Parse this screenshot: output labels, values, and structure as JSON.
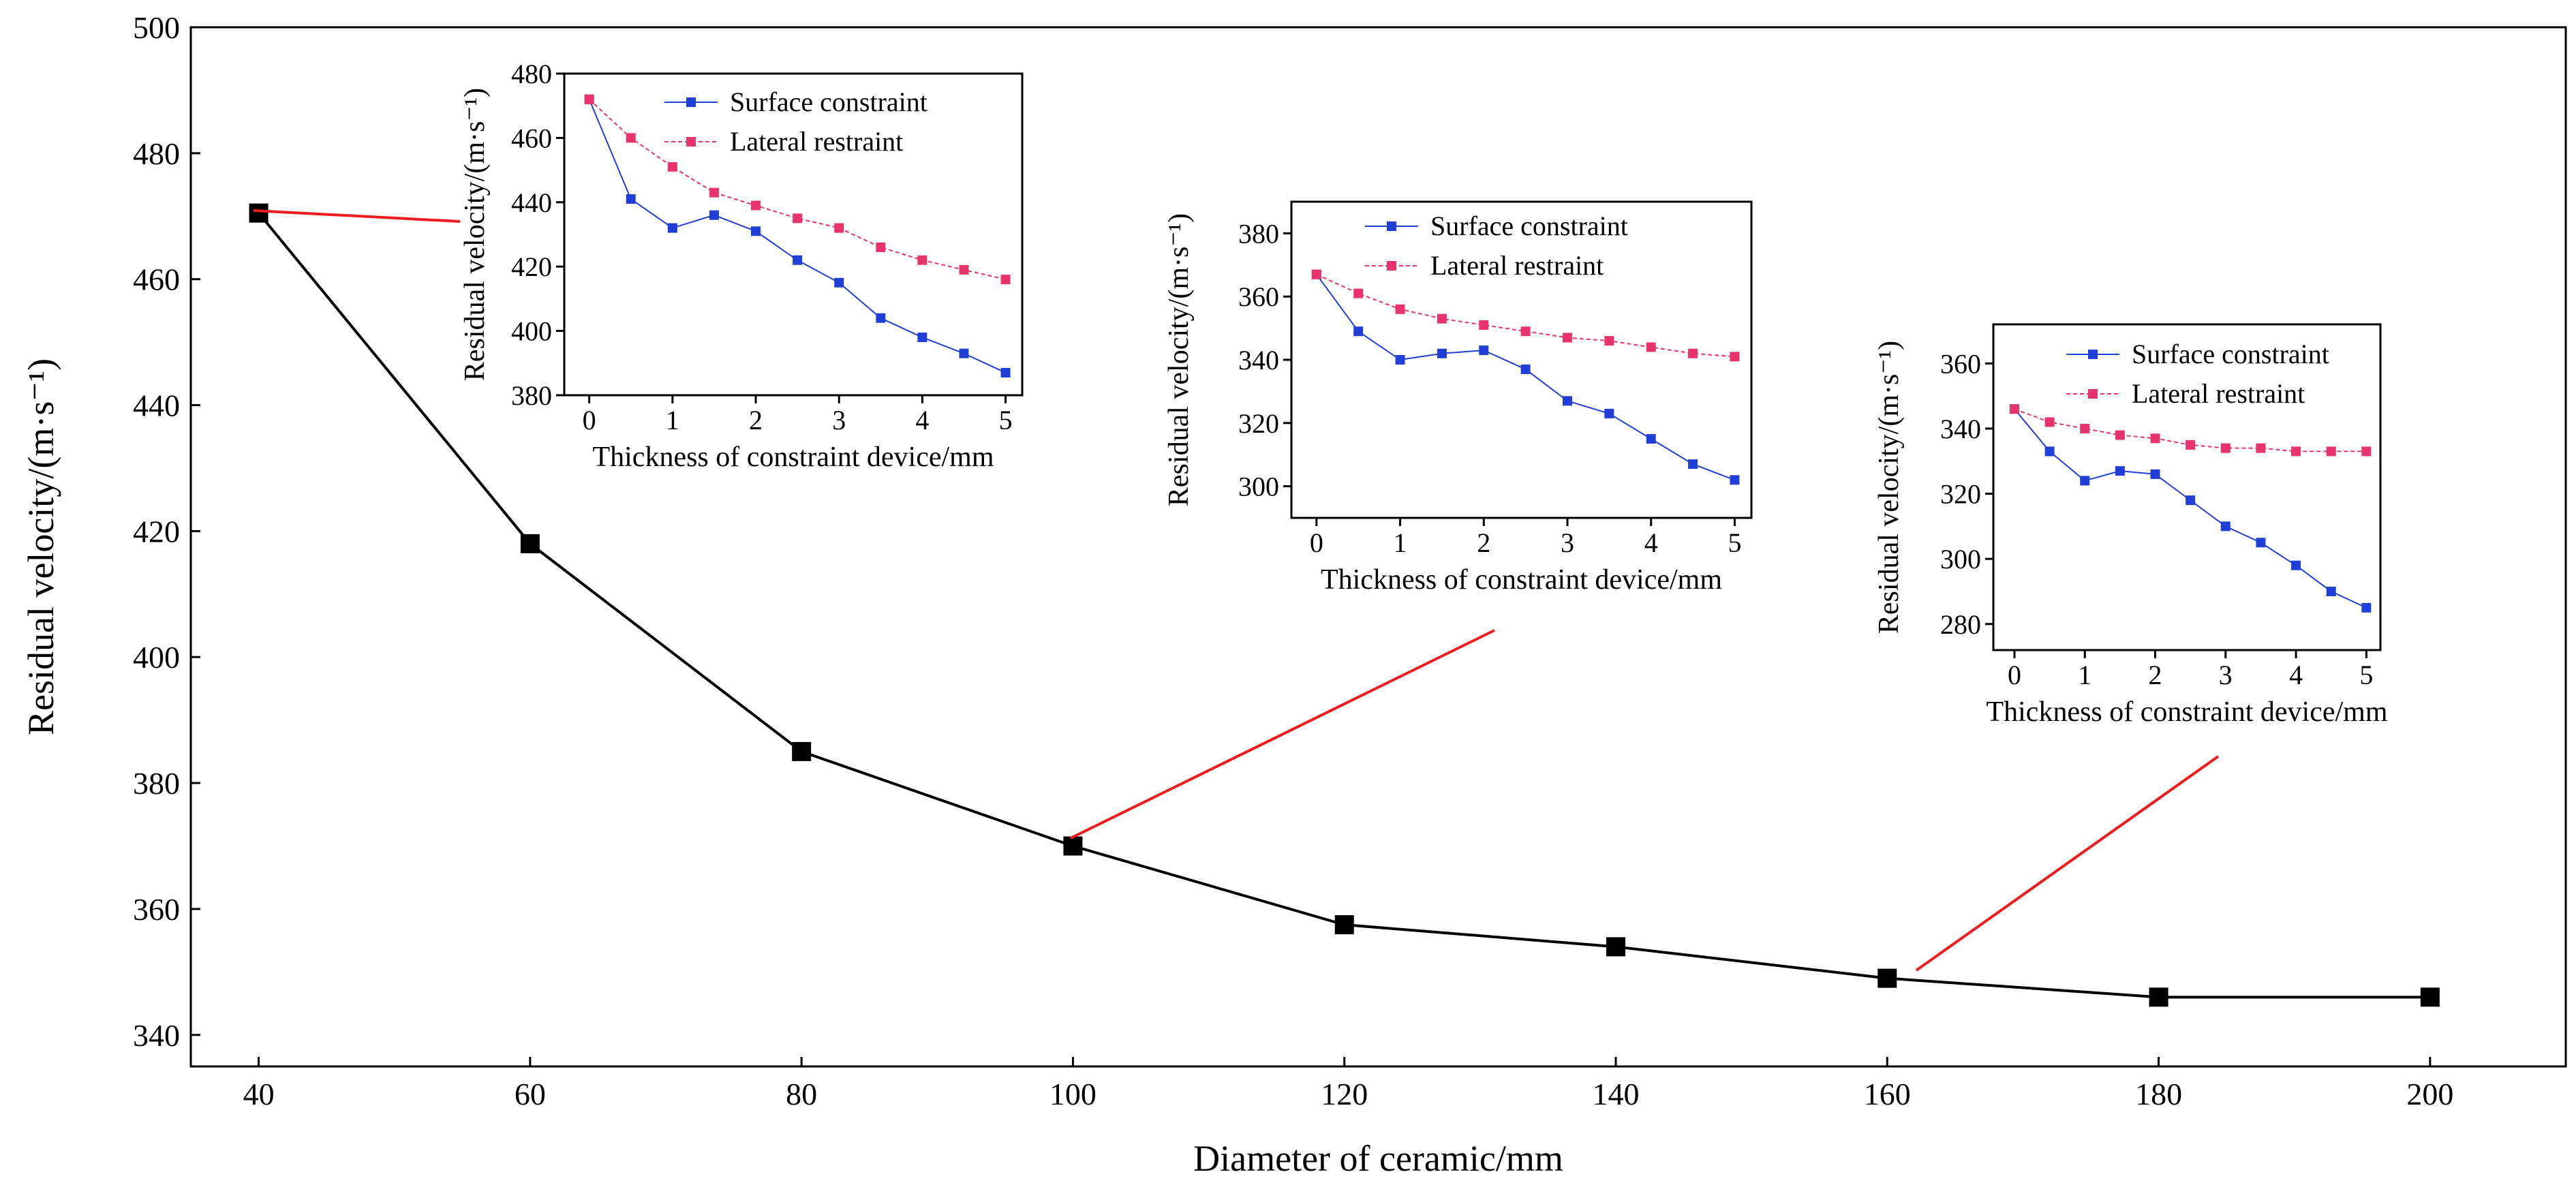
{
  "colors": {
    "main": "#000000",
    "surface": "#1f3fd6",
    "lateral": "#e8346a",
    "connector": "#ee1c1c"
  },
  "chart_data": [
    {
      "type": "line",
      "title": "",
      "xlabel": "Diameter of ceramic/mm",
      "ylabel": "Residual velocity/(m·s⁻¹)",
      "x": [
        40,
        60,
        80,
        100,
        120,
        140,
        160,
        180,
        200
      ],
      "xlim": [
        35,
        210
      ],
      "ylim": [
        335,
        500
      ],
      "xticks": [
        40,
        60,
        80,
        100,
        120,
        140,
        160,
        180,
        200
      ],
      "yticks": [
        340,
        360,
        380,
        400,
        420,
        440,
        460,
        480,
        500
      ],
      "series": [
        {
          "values": [
            470.5,
            418,
            385,
            370,
            357.5,
            354,
            349,
            346,
            346
          ],
          "marker": "square",
          "color": "#000000"
        }
      ],
      "grid": false,
      "legend": "none"
    },
    {
      "type": "line",
      "inset_for_x": 40,
      "xlabel": "Thickness of constraint device/mm",
      "ylabel": "Residual velocity/(m·s⁻¹)",
      "x": [
        0,
        0.5,
        1,
        1.5,
        2,
        2.5,
        3,
        3.5,
        4,
        4.5,
        5
      ],
      "xlim": [
        -0.3,
        5.2
      ],
      "ylim": [
        380,
        480
      ],
      "xticks": [
        0,
        1,
        2,
        3,
        4,
        5
      ],
      "yticks": [
        380,
        400,
        420,
        440,
        460,
        480
      ],
      "series": [
        {
          "name": "Surface constraint",
          "values": [
            472,
            441,
            432,
            436,
            431,
            422,
            415,
            404,
            398,
            393,
            387
          ],
          "color": "#1f3fd6"
        },
        {
          "name": "Lateral restraint",
          "values": [
            472,
            460,
            451,
            443,
            439,
            435,
            432,
            426,
            422,
            419,
            416
          ],
          "color": "#e8346a"
        }
      ],
      "legend": "top-right"
    },
    {
      "type": "line",
      "inset_for_x": 100,
      "xlabel": "Thickness of constraint device/mm",
      "ylabel": "Residual velocity/(m·s⁻¹)",
      "x": [
        0,
        0.5,
        1,
        1.5,
        2,
        2.5,
        3,
        3.5,
        4,
        4.5,
        5
      ],
      "xlim": [
        -0.3,
        5.2
      ],
      "ylim": [
        290,
        390
      ],
      "xticks": [
        0,
        1,
        2,
        3,
        4,
        5
      ],
      "yticks": [
        300,
        320,
        340,
        360,
        380
      ],
      "series": [
        {
          "name": "Surface constraint",
          "values": [
            367,
            349,
            340,
            342,
            343,
            337,
            327,
            323,
            315,
            307,
            302
          ],
          "color": "#1f3fd6"
        },
        {
          "name": "Lateral restraint",
          "values": [
            367,
            361,
            356,
            353,
            351,
            349,
            347,
            346,
            344,
            342,
            341
          ],
          "color": "#e8346a"
        }
      ],
      "legend": "top-right"
    },
    {
      "type": "line",
      "inset_for_x": 160,
      "xlabel": "Thickness of constraint device/mm",
      "ylabel": "Residual velocity/(m·s⁻¹)",
      "x": [
        0,
        0.5,
        1,
        1.5,
        2,
        2.5,
        3,
        3.5,
        4,
        4.5,
        5
      ],
      "xlim": [
        -0.3,
        5.2
      ],
      "ylim": [
        272,
        372
      ],
      "xticks": [
        0,
        1,
        2,
        3,
        4,
        5
      ],
      "yticks": [
        280,
        300,
        320,
        340,
        360
      ],
      "series": [
        {
          "name": "Surface constraint",
          "values": [
            346,
            333,
            324,
            327,
            326,
            318,
            310,
            305,
            298,
            290,
            285
          ],
          "color": "#1f3fd6"
        },
        {
          "name": "Lateral restraint",
          "values": [
            346,
            342,
            340,
            338,
            337,
            335,
            334,
            334,
            333,
            333,
            333
          ],
          "color": "#e8346a"
        }
      ],
      "legend": "top-right"
    }
  ]
}
